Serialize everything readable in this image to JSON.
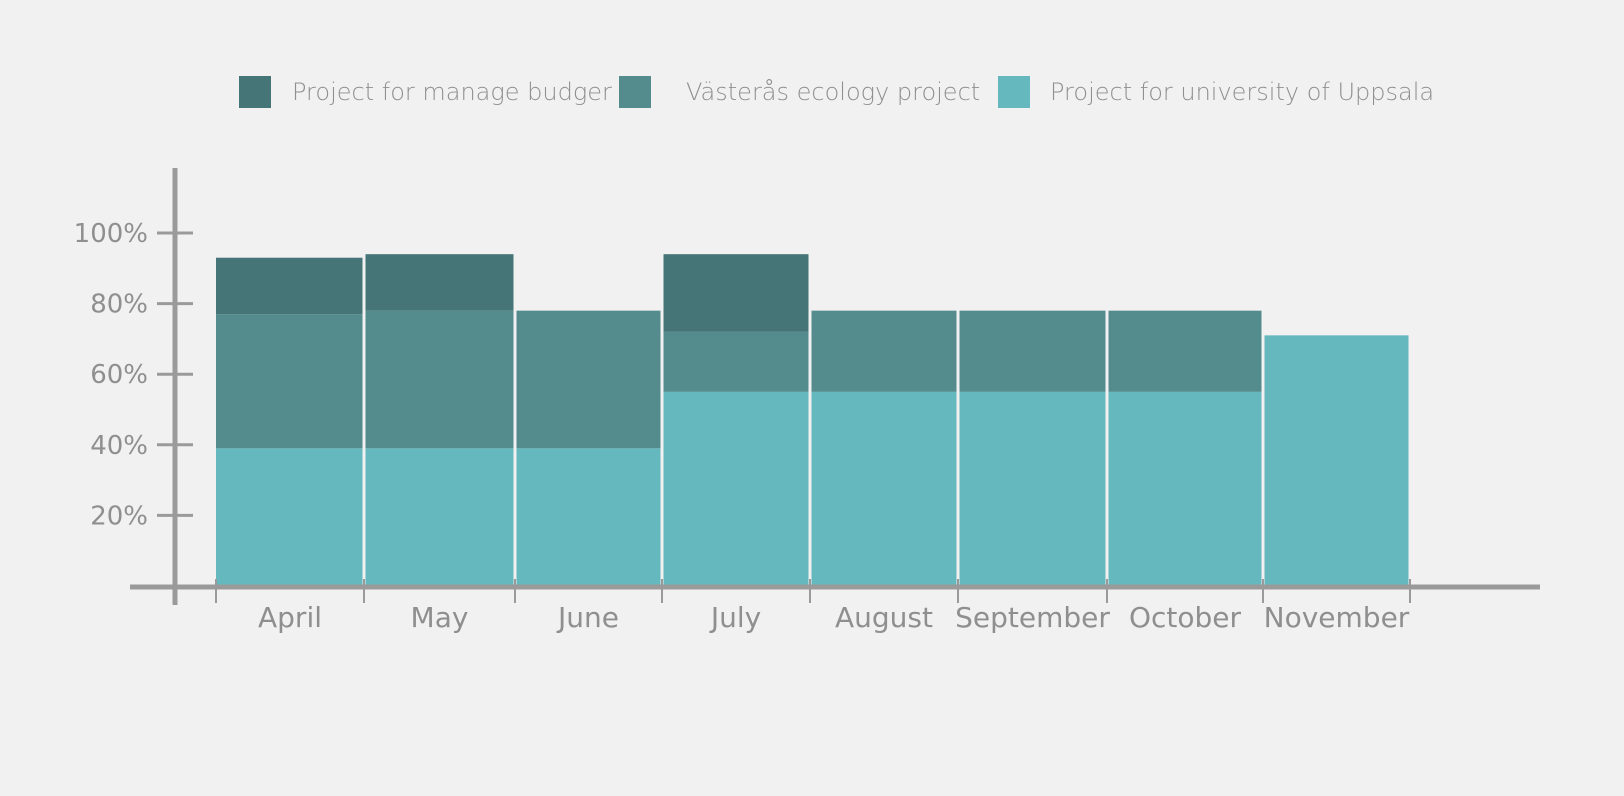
{
  "chart_data": {
    "type": "bar",
    "stacked": true,
    "categories": [
      "April",
      "May",
      "June",
      "July",
      "August",
      "September",
      "October",
      "November"
    ],
    "series": [
      {
        "name": "Project for university of Uppsala",
        "color": "#66b8bf",
        "values": [
          39,
          39,
          39,
          55,
          55,
          55,
          55,
          71
        ]
      },
      {
        "name": "Västerås ecology project",
        "color": "#548c8e",
        "values": [
          38,
          39,
          39,
          17,
          23,
          23,
          23,
          0
        ]
      },
      {
        "name": "Project for manage budger",
        "color": "#467577",
        "values": [
          16,
          16,
          0,
          22,
          0,
          0,
          0,
          0
        ]
      }
    ],
    "legend": {
      "placement": "top",
      "order": [
        "Project for manage budger",
        "Västerås ecology project",
        "Project for university of Uppsala"
      ]
    },
    "y_ticks": [
      "20%",
      "40%",
      "60%",
      "80%",
      "100%"
    ],
    "y_tick_values": [
      20,
      40,
      60,
      80,
      100
    ],
    "ylim": [
      0,
      120
    ],
    "axis_color": "#9a9a9a",
    "background": "#f1f1f1",
    "grid": false
  }
}
